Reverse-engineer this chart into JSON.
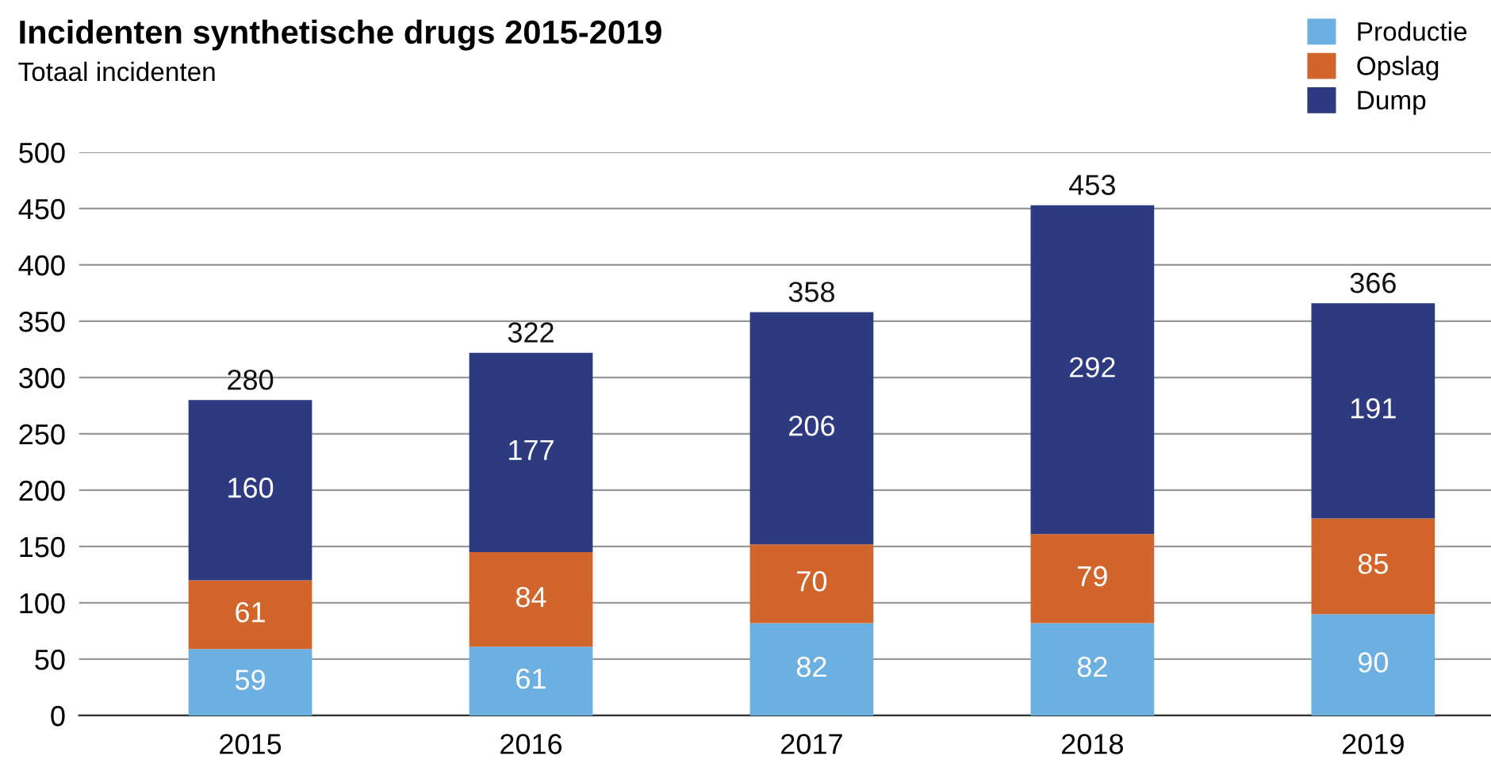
{
  "chart_data": {
    "type": "bar",
    "title": "Incidenten synthetische drugs 2015-2019",
    "subtitle": "Totaal incidenten",
    "categories": [
      "2015",
      "2016",
      "2017",
      "2018",
      "2019"
    ],
    "series": [
      {
        "name": "Productie",
        "color": "#6cb0e2",
        "values": [
          59,
          61,
          82,
          82,
          90
        ]
      },
      {
        "name": "Opslag",
        "color": "#d2652c",
        "values": [
          61,
          84,
          70,
          79,
          85
        ]
      },
      {
        "name": "Dump",
        "color": "#2d3a80",
        "values": [
          160,
          177,
          206,
          292,
          191
        ]
      }
    ],
    "stacked": true,
    "data_labels": true,
    "totals": [
      "280",
      "322",
      "358",
      "453",
      "366"
    ],
    "ylim": [
      0,
      500
    ],
    "yticks": [
      0,
      50,
      100,
      150,
      200,
      250,
      300,
      350,
      400,
      450,
      500
    ],
    "grid": "y",
    "legend": "top right"
  }
}
